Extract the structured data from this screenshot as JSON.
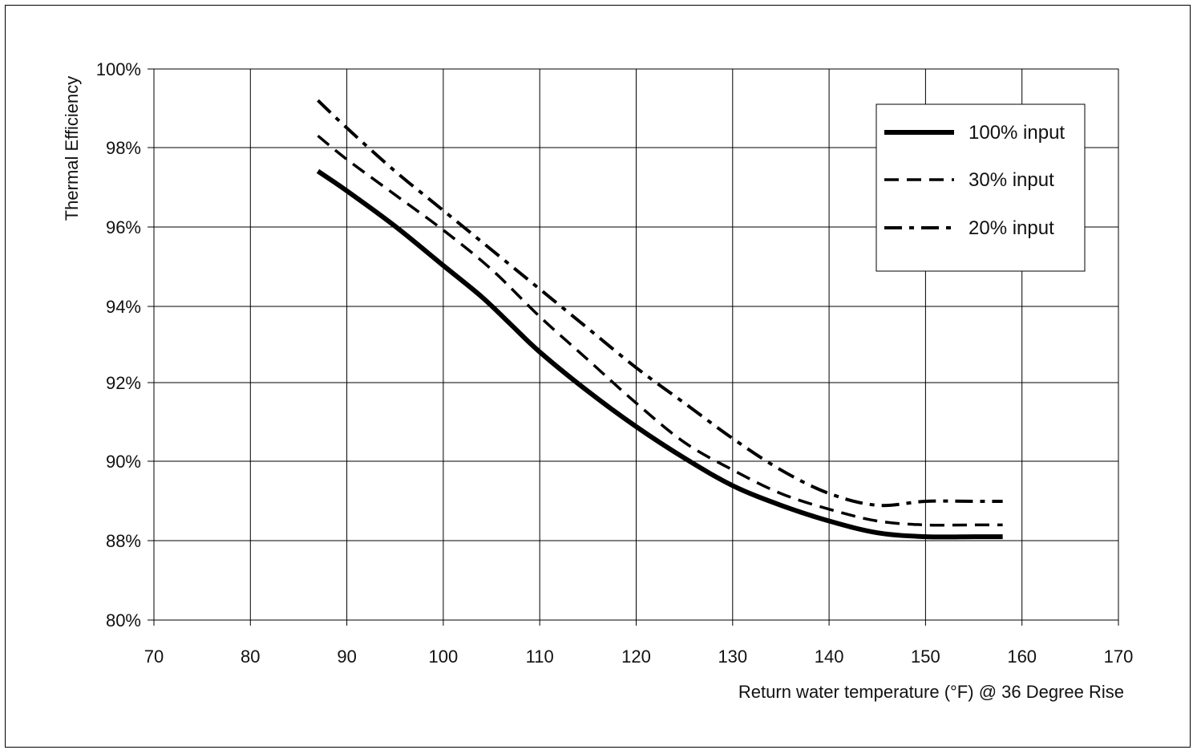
{
  "chart_data": {
    "type": "line",
    "title": "",
    "xlabel": "Return water temperature (°F) @ 36 Degree Rise",
    "ylabel": "Thermal Efficiency",
    "x_ticks": [
      70,
      80,
      90,
      100,
      110,
      120,
      130,
      140,
      150,
      160,
      170
    ],
    "x_tick_labels": [
      "70",
      "80",
      "90",
      "100",
      "110",
      "120",
      "130",
      "140",
      "150",
      "160",
      "170"
    ],
    "y_tick_labels": [
      "80%",
      "88%",
      "90%",
      "92%",
      "94%",
      "96%",
      "98%",
      "100%"
    ],
    "y_tick_values": [
      80,
      88,
      90,
      92,
      94,
      96,
      98,
      100
    ],
    "y_axis_note": "non-linear break between 80% and 88%",
    "xlim": [
      70,
      170
    ],
    "ylim": [
      80,
      100
    ],
    "grid": true,
    "legend_position": "top-right",
    "series": [
      {
        "name": "100% input",
        "style": "solid",
        "color": "#000000",
        "x": [
          87,
          90,
          95,
          100,
          104,
          107,
          110,
          115,
          120,
          125,
          130,
          135,
          140,
          145,
          150,
          155,
          158
        ],
        "y": [
          97.4,
          96.9,
          96.0,
          95.0,
          94.2,
          93.5,
          92.8,
          91.8,
          90.9,
          90.1,
          89.4,
          88.9,
          88.5,
          88.2,
          88.1,
          88.1,
          88.1
        ]
      },
      {
        "name": "30% input",
        "style": "dashed",
        "color": "#000000",
        "x": [
          87,
          90,
          95,
          100,
          105,
          110,
          115,
          120,
          125,
          130,
          135,
          140,
          145,
          150,
          155,
          158
        ],
        "y": [
          98.3,
          97.7,
          96.8,
          95.9,
          94.9,
          93.7,
          92.6,
          91.5,
          90.5,
          89.8,
          89.2,
          88.8,
          88.5,
          88.4,
          88.4,
          88.4
        ]
      },
      {
        "name": "20% input",
        "style": "dashdot",
        "color": "#000000",
        "x": [
          87,
          90,
          95,
          100,
          105,
          110,
          115,
          120,
          125,
          130,
          135,
          140,
          145,
          150,
          155,
          158
        ],
        "y": [
          99.2,
          98.5,
          97.4,
          96.4,
          95.4,
          94.4,
          93.4,
          92.4,
          91.5,
          90.6,
          89.8,
          89.2,
          88.9,
          89.0,
          89.0,
          89.0
        ]
      }
    ]
  }
}
